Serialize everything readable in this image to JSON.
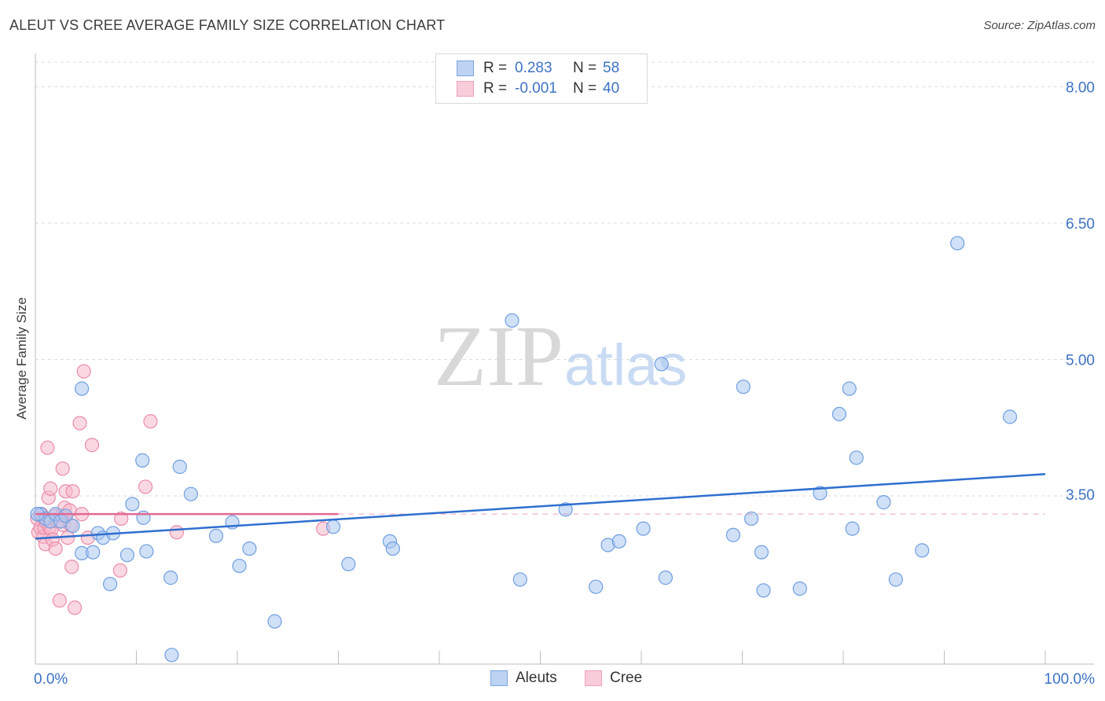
{
  "header": {
    "title": "ALEUT VS CREE AVERAGE FAMILY SIZE CORRELATION CHART",
    "source": "Source: ZipAtlas.com"
  },
  "watermark": {
    "zip": "ZIP",
    "atlas": "atlas"
  },
  "legend": {
    "rows": [
      {
        "r_label": "R =",
        "r_value": "0.283",
        "n_label": "N =",
        "n_value": "58"
      },
      {
        "r_label": "R =",
        "r_value": "-0.001",
        "n_label": "N =",
        "n_value": "40"
      }
    ]
  },
  "bottom_legend": {
    "aleuts": "Aleuts",
    "cree": "Cree"
  },
  "colors": {
    "aleuts_fill": "#a9c7f0",
    "aleuts_stroke": "#6f9fe0",
    "aleuts_line": "#2f6fcf",
    "cree_fill": "#f6b8cb",
    "cree_stroke": "#ea8cab",
    "cree_line": "#e26892",
    "grid": "#dddddd",
    "axis_text": "#3d72c4"
  },
  "chart_data": {
    "type": "scatter",
    "title": "ALEUT VS CREE AVERAGE FAMILY SIZE CORRELATION CHART",
    "xlabel": "",
    "ylabel": "Average Family Size",
    "xlim": [
      0,
      100
    ],
    "ylim": [
      1.65,
      8.35
    ],
    "x_tick_labels": [
      "0.0%",
      "100.0%"
    ],
    "y_ticks": [
      3.5,
      5.0,
      6.5,
      8.0
    ],
    "y_tick_labels": [
      "3.50",
      "5.00",
      "6.50",
      "8.00"
    ],
    "grid": true,
    "series": [
      {
        "name": "Aleuts",
        "stats": {
          "R": 0.283,
          "N": 58
        },
        "trend": {
          "x0": 0,
          "y0": 3.03,
          "x1": 100,
          "y1": 3.74
        },
        "points": [
          [
            0.5,
            3.3
          ],
          [
            1.0,
            3.25
          ],
          [
            1.5,
            3.22
          ],
          [
            2.0,
            3.3
          ],
          [
            2.5,
            3.22
          ],
          [
            3.0,
            3.28
          ],
          [
            3.7,
            3.17
          ],
          [
            4.6,
            4.68
          ],
          [
            4.6,
            2.87
          ],
          [
            5.7,
            2.88
          ],
          [
            6.2,
            3.09
          ],
          [
            6.7,
            3.04
          ],
          [
            7.4,
            2.53
          ],
          [
            7.7,
            3.09
          ],
          [
            9.1,
            2.85
          ],
          [
            9.6,
            3.41
          ],
          [
            10.6,
            3.89
          ],
          [
            10.7,
            3.26
          ],
          [
            11.0,
            2.89
          ],
          [
            13.4,
            2.6
          ],
          [
            13.5,
            1.75
          ],
          [
            14.3,
            3.82
          ],
          [
            15.4,
            3.52
          ],
          [
            17.9,
            3.06
          ],
          [
            19.5,
            3.21
          ],
          [
            20.2,
            2.73
          ],
          [
            21.2,
            2.92
          ],
          [
            23.7,
            2.12
          ],
          [
            29.5,
            3.16
          ],
          [
            31.0,
            2.75
          ],
          [
            35.1,
            3.0
          ],
          [
            35.4,
            2.92
          ],
          [
            48.0,
            2.58
          ],
          [
            47.2,
            5.43
          ],
          [
            52.5,
            3.35
          ],
          [
            55.5,
            2.5
          ],
          [
            56.7,
            2.96
          ],
          [
            57.8,
            3.0
          ],
          [
            60.2,
            3.14
          ],
          [
            62.4,
            2.6
          ],
          [
            62.0,
            4.95
          ],
          [
            69.1,
            3.07
          ],
          [
            70.1,
            4.7
          ],
          [
            70.9,
            3.25
          ],
          [
            71.9,
            2.88
          ],
          [
            72.1,
            2.46
          ],
          [
            75.7,
            2.48
          ],
          [
            77.7,
            3.53
          ],
          [
            79.6,
            4.4
          ],
          [
            80.6,
            4.68
          ],
          [
            80.9,
            3.14
          ],
          [
            81.3,
            3.92
          ],
          [
            84.0,
            3.43
          ],
          [
            85.2,
            2.58
          ],
          [
            87.8,
            2.9
          ],
          [
            91.3,
            6.28
          ],
          [
            96.5,
            4.37
          ],
          [
            0.2,
            3.3
          ]
        ]
      },
      {
        "name": "Cree",
        "stats": {
          "R": -0.001,
          "N": 40
        },
        "trend": {
          "x0": 0,
          "y0": 3.3,
          "x1": 30,
          "y1": 3.3,
          "dashed_to": 100
        },
        "points": [
          [
            0.2,
            3.25
          ],
          [
            0.3,
            3.1
          ],
          [
            0.5,
            3.15
          ],
          [
            0.6,
            3.3
          ],
          [
            0.8,
            3.05
          ],
          [
            0.9,
            3.15
          ],
          [
            1.0,
            3.22
          ],
          [
            1.0,
            2.97
          ],
          [
            1.2,
            4.03
          ],
          [
            1.3,
            3.48
          ],
          [
            1.4,
            3.15
          ],
          [
            1.5,
            3.58
          ],
          [
            1.6,
            3.13
          ],
          [
            1.7,
            3.02
          ],
          [
            2.0,
            3.28
          ],
          [
            2.0,
            2.92
          ],
          [
            2.2,
            3.22
          ],
          [
            2.4,
            2.35
          ],
          [
            2.6,
            3.28
          ],
          [
            2.7,
            3.8
          ],
          [
            2.8,
            3.18
          ],
          [
            2.9,
            3.37
          ],
          [
            3.0,
            3.55
          ],
          [
            3.2,
            3.04
          ],
          [
            3.4,
            3.34
          ],
          [
            3.5,
            3.18
          ],
          [
            3.6,
            2.72
          ],
          [
            3.7,
            3.55
          ],
          [
            3.9,
            2.27
          ],
          [
            4.4,
            4.3
          ],
          [
            4.6,
            3.3
          ],
          [
            4.8,
            4.87
          ],
          [
            5.2,
            3.04
          ],
          [
            5.6,
            4.06
          ],
          [
            8.4,
            2.68
          ],
          [
            8.5,
            3.25
          ],
          [
            10.9,
            3.6
          ],
          [
            11.4,
            4.32
          ],
          [
            14.0,
            3.1
          ],
          [
            28.5,
            3.14
          ]
        ]
      }
    ]
  }
}
